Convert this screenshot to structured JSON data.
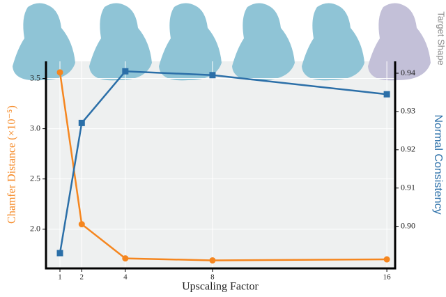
{
  "chart_data": {
    "type": "line",
    "annotation": "Target Shape",
    "xlabel": "Upscaling Factor",
    "ylabel": "Chamfer Distance (×10⁻⁵)",
    "y2label": "Normal Consistency",
    "x": [
      1,
      2,
      4,
      8,
      16
    ],
    "xlim": [
      0.36,
      16.38
    ],
    "xticks": [
      1,
      2,
      4,
      8,
      16
    ],
    "ylim": [
      1.61,
      3.67
    ],
    "yticks": [
      {
        "value": 2,
        "label": "2.0"
      },
      2.5,
      {
        "value": 3,
        "label": "3.0"
      },
      3.5
    ],
    "y2lim": [
      0.889,
      0.9431
    ],
    "y2ticks": [
      {
        "value": 0.9,
        "label": "0.90"
      },
      0.91,
      0.92,
      0.93,
      0.94
    ],
    "grid": true,
    "series": [
      {
        "color": "#f5861f",
        "marker": "circle",
        "values": [
          3.56,
          2.05,
          1.71,
          1.69,
          1.7
        ]
      },
      {
        "color": "#2b6fa8",
        "marker": "square",
        "axis": "y2",
        "values": [
          0.893,
          0.927,
          0.9405,
          0.9395,
          0.9345
        ]
      }
    ]
  }
}
